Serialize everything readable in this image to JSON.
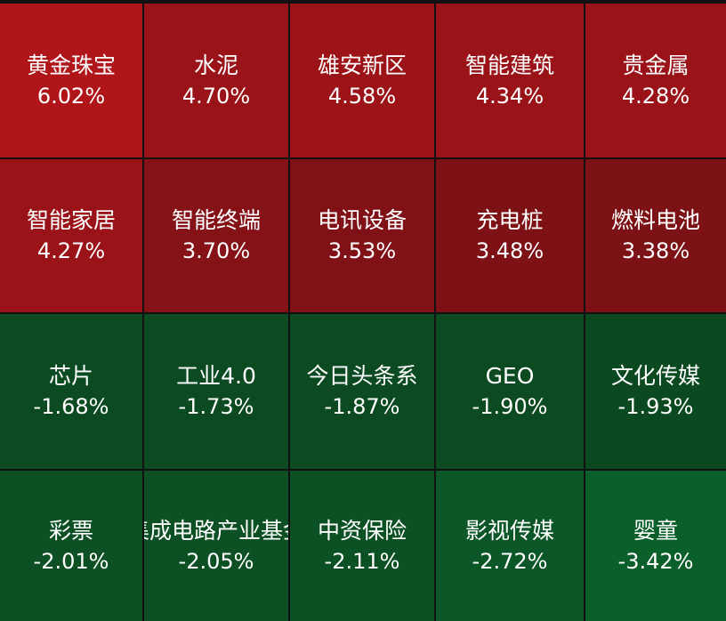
{
  "heatmap": {
    "tiles": [
      {
        "name": "黄金珠宝",
        "change": "6.02%",
        "color": "#b01519"
      },
      {
        "name": "水泥",
        "change": "4.70%",
        "color": "#9a1318"
      },
      {
        "name": "雄安新区",
        "change": "4.58%",
        "color": "#9c1418"
      },
      {
        "name": "智能建筑",
        "change": "4.34%",
        "color": "#9a1318"
      },
      {
        "name": "贵金属",
        "change": "4.28%",
        "color": "#9a1318"
      },
      {
        "name": "智能家居",
        "change": "4.27%",
        "color": "#9a1318"
      },
      {
        "name": "智能终端",
        "change": "3.70%",
        "color": "#851217"
      },
      {
        "name": "电讯设备",
        "change": "3.53%",
        "color": "#801117"
      },
      {
        "name": "充电桩",
        "change": "3.48%",
        "color": "#7e1116"
      },
      {
        "name": "燃料电池",
        "change": "3.38%",
        "color": "#7c1116"
      },
      {
        "name": "芯片",
        "change": "-1.68%",
        "color": "#0c4a22"
      },
      {
        "name": "工业4.0",
        "change": "-1.73%",
        "color": "#0c4a22"
      },
      {
        "name": "今日头条系",
        "change": "-1.87%",
        "color": "#0c4a22"
      },
      {
        "name": "GEO",
        "change": "-1.90%",
        "color": "#0c4a22"
      },
      {
        "name": "文化传媒",
        "change": "-1.93%",
        "color": "#0b4a21"
      },
      {
        "name": "彩票",
        "change": "-2.01%",
        "color": "#0c5024"
      },
      {
        "name": "集成电路产业基金",
        "change": "-2.05%",
        "color": "#0c5024"
      },
      {
        "name": "中资保险",
        "change": "-2.11%",
        "color": "#0c5124"
      },
      {
        "name": "影视传媒",
        "change": "-2.72%",
        "color": "#0c5728"
      },
      {
        "name": "婴童",
        "change": "-3.42%",
        "color": "#0b5f2b"
      }
    ]
  }
}
